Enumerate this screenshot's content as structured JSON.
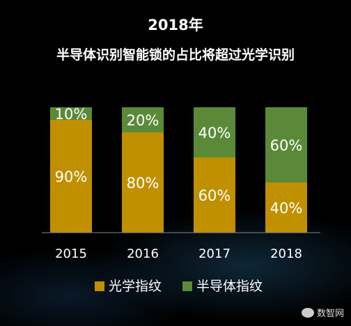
{
  "chart_data": {
    "type": "bar",
    "title": "2018年",
    "subtitle": "半导体识别智能锁的占比将超过光学识别",
    "categories": [
      "2015",
      "2016",
      "2017",
      "2018"
    ],
    "series": [
      {
        "name": "光学指纹",
        "values": [
          90,
          80,
          60,
          40
        ],
        "labels": [
          "90%",
          "80%",
          "60%",
          "40%"
        ],
        "color": "#C09000"
      },
      {
        "name": "半导体指纹",
        "values": [
          10,
          20,
          40,
          60
        ],
        "labels": [
          "10%",
          "20%",
          "40%",
          "60%"
        ],
        "color": "#5A8A37"
      }
    ],
    "ylim": [
      0,
      100
    ],
    "stacked": true,
    "legend_position": "bottom"
  },
  "watermark": {
    "text": "数智网"
  }
}
